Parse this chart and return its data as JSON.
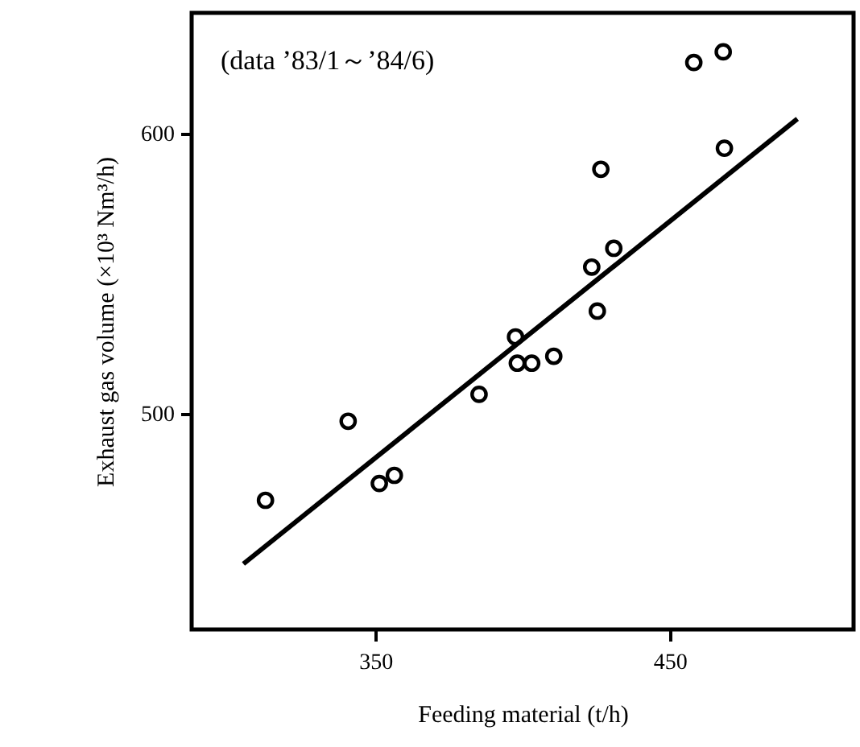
{
  "chart_data": {
    "type": "scatter",
    "xlabel": "Feeding material (t/h)",
    "ylabel": "Exhaust gas volume (×10³ Nm³/h)",
    "annotations": [
      "(data ’83/1～’84/6)"
    ],
    "xlim": [
      287.5,
      512.5
    ],
    "xticks": [
      350,
      450
    ],
    "ylim": [
      423,
      643
    ],
    "yticks": [
      500,
      600
    ],
    "grid": false,
    "marker": "circle",
    "series": [
      {
        "color": "#000000",
        "x": [
          312.6,
          340.7,
          351.3,
          356.4,
          385.2,
          397.6,
          398.2,
          403.1,
          410.6,
          423.5,
          425.4,
          426.6,
          431,
          458.2,
          468.2,
          468.6
        ],
        "values": [
          469.1,
          497.3,
          475.1,
          478,
          506.9,
          527.4,
          518,
          518,
          520.5,
          552.3,
          536.6,
          587.2,
          559,
          625.3,
          629.1,
          594.7
        ]
      },
      {
        "type": "line",
        "color": "#000000",
        "line_style": "solid",
        "marker": "none",
        "x": [
          305.1,
          493.4
        ],
        "values": [
          446.4,
          605.2
        ]
      }
    ]
  }
}
